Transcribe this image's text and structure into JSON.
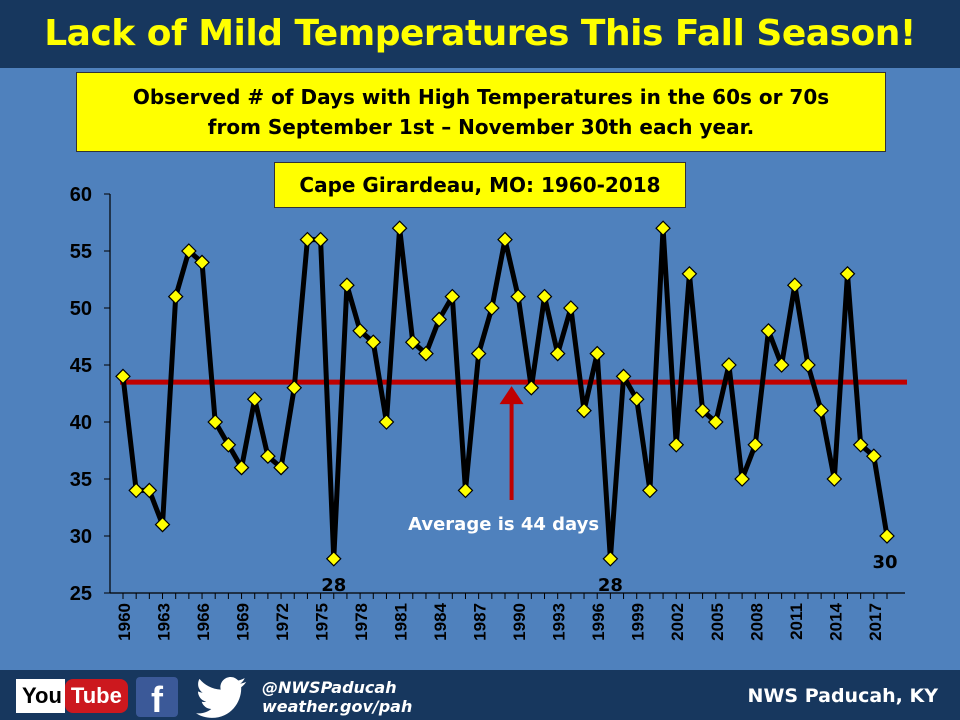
{
  "title": "Lack of Mild Temperatures This Fall Season!",
  "subtitle_lines": [
    "Observed # of Days with High Temperatures in the 60s or 70s",
    "from September 1st – November 30th each year."
  ],
  "station_label": "Cape Girardeau, MO: 1960-2018",
  "chart_data": {
    "type": "line",
    "x": [
      1960,
      1961,
      1962,
      1963,
      1964,
      1965,
      1966,
      1967,
      1968,
      1969,
      1970,
      1971,
      1972,
      1973,
      1974,
      1975,
      1976,
      1977,
      1978,
      1979,
      1980,
      1981,
      1982,
      1983,
      1984,
      1985,
      1986,
      1987,
      1988,
      1989,
      1990,
      1991,
      1992,
      1993,
      1994,
      1995,
      1996,
      1997,
      1998,
      1999,
      2000,
      2001,
      2002,
      2003,
      2004,
      2005,
      2006,
      2007,
      2008,
      2009,
      2010,
      2011,
      2012,
      2013,
      2014,
      2015,
      2016,
      2017,
      2018
    ],
    "series": [
      {
        "values": [
          44,
          34,
          34,
          31,
          51,
          55,
          54,
          40,
          38,
          36,
          42,
          37,
          36,
          43,
          56,
          56,
          28,
          52,
          48,
          47,
          40,
          57,
          47,
          46,
          49,
          51,
          34,
          46,
          50,
          56,
          51,
          43,
          51,
          46,
          50,
          41,
          46,
          28,
          44,
          42,
          34,
          57,
          38,
          53,
          41,
          40,
          45,
          35,
          38,
          48,
          45,
          52,
          45,
          41,
          35,
          53,
          38,
          37,
          30
        ]
      }
    ],
    "x_tick_labels": [
      "1960",
      "1963",
      "1966",
      "1969",
      "1972",
      "1975",
      "1978",
      "1981",
      "1984",
      "1987",
      "1990",
      "1993",
      "1996",
      "1999",
      "2002",
      "2005",
      "2008",
      "2011",
      "2014",
      "2017"
    ],
    "y_tick_labels": [
      "25",
      "30",
      "35",
      "40",
      "45",
      "50",
      "55",
      "60"
    ],
    "ylim": [
      25,
      60
    ],
    "xlim": [
      1960,
      2018
    ],
    "average": 43.5,
    "average_label": "Average is 44 days",
    "annotations": [
      {
        "x": 1976,
        "text": "28"
      },
      {
        "x": 1997,
        "text": "28"
      },
      {
        "x": 2018,
        "text": "30"
      }
    ],
    "grid": false,
    "colors": {
      "line": "#000000",
      "marker": "#ffff00",
      "average": "#c00000",
      "arrow": "#c00000"
    }
  },
  "footer": {
    "youtube_you": "You",
    "youtube_tube": "Tube",
    "facebook_letter": "f",
    "handle": "@NWSPaducah",
    "website": "weather.gov/pah",
    "office": "NWS Paducah, KY",
    "icons": [
      "youtube-icon",
      "facebook-icon",
      "twitter-icon"
    ]
  }
}
